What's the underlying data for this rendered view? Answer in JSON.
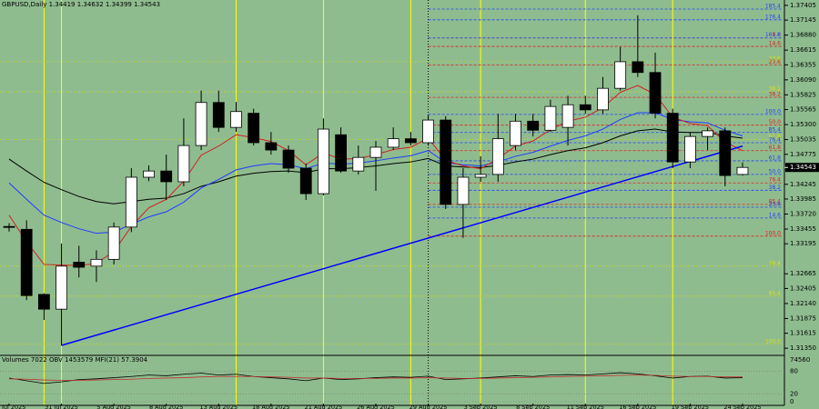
{
  "chart_data": [
    {
      "type": "candlestick",
      "title": "GBPUSD,Daily  1.34419 1.34632 1.34399 1.34543",
      "categories": [
        "28 Jul 2025",
        null,
        null,
        "31 Jul 2025",
        null,
        null,
        "5 Aug 2025",
        null,
        null,
        "8 Aug 2025",
        null,
        null,
        "13 Aug 2025",
        null,
        null,
        "18 Aug 2025",
        null,
        null,
        "21 Aug 2025",
        null,
        null,
        "26 Aug 2025",
        null,
        null,
        "29 Aug 2025",
        null,
        null,
        "3 Sep 2025",
        null,
        null,
        "8 Sep 2025",
        null,
        null,
        "11 Sep 2025",
        null,
        null,
        "16 Sep 2025",
        null,
        null,
        "19 Sep 2025",
        null,
        null,
        "24 Sep 2025"
      ],
      "open": [
        1.335,
        1.3345,
        1.323,
        1.3204,
        1.3287,
        1.328,
        1.3292,
        1.3349,
        1.3437,
        1.3448,
        1.3429,
        1.3493,
        1.3569,
        1.3525,
        1.355,
        1.3498,
        1.3485,
        1.3453,
        1.3408,
        1.3512,
        1.3448,
        1.3472,
        1.349,
        1.3505,
        1.3498,
        1.3538,
        1.3389,
        1.3437,
        1.3442,
        1.3493,
        1.3536,
        1.352,
        1.3525,
        1.3565,
        1.3556,
        1.3594,
        1.3641,
        1.3622,
        1.355,
        1.3464,
        1.3509,
        1.3519,
        1.34419
      ],
      "high": [
        1.3356,
        1.3361,
        1.3232,
        1.332,
        1.3316,
        1.3308,
        1.3357,
        1.3453,
        1.3458,
        1.3477,
        1.3541,
        1.359,
        1.359,
        1.357,
        1.3558,
        1.3517,
        1.3493,
        1.3461,
        1.3541,
        1.3525,
        1.3493,
        1.3501,
        1.3525,
        1.3517,
        1.3546,
        1.3545,
        1.3453,
        1.3474,
        1.3549,
        1.3549,
        1.3549,
        1.3574,
        1.3581,
        1.3581,
        1.3614,
        1.3667,
        1.3723,
        1.3657,
        1.3558,
        1.3517,
        1.3525,
        1.3525,
        1.34632
      ],
      "low": [
        1.3341,
        1.322,
        1.3185,
        1.314,
        1.326,
        1.3252,
        1.3283,
        1.334,
        1.343,
        1.3397,
        1.3421,
        1.3485,
        1.3517,
        1.3517,
        1.3493,
        1.3477,
        1.3445,
        1.3397,
        1.3405,
        1.3445,
        1.3442,
        1.3413,
        1.3485,
        1.3493,
        1.3493,
        1.3381,
        1.333,
        1.3429,
        1.3429,
        1.3485,
        1.3509,
        1.3517,
        1.3493,
        1.3549,
        1.3549,
        1.359,
        1.3614,
        1.3541,
        1.3453,
        1.3453,
        1.3485,
        1.3421,
        1.34399
      ],
      "close": [
        1.3349,
        1.3228,
        1.3204,
        1.328,
        1.3278,
        1.3292,
        1.3349,
        1.3437,
        1.3448,
        1.3429,
        1.3493,
        1.3569,
        1.3525,
        1.3553,
        1.3498,
        1.3485,
        1.3453,
        1.3408,
        1.3522,
        1.3448,
        1.3472,
        1.349,
        1.3505,
        1.3498,
        1.3538,
        1.3389,
        1.3437,
        1.3442,
        1.3505,
        1.3536,
        1.352,
        1.3562,
        1.3565,
        1.3556,
        1.3594,
        1.3641,
        1.3622,
        1.355,
        1.3464,
        1.3509,
        1.3519,
        1.344,
        1.34543
      ],
      "up_color": "#ffffff",
      "down_color": "#000000",
      "background": "#8fbc8f",
      "ylim": [
        1.3124,
        1.375
      ],
      "yticks": [
        1.37405,
        1.37145,
        {
          "value": 1.3688,
          "label": "1.36880"
        },
        1.36615,
        1.36355,
        {
          "value": 1.3609,
          "label": "1.36090"
        },
        1.35825,
        1.35565,
        {
          "value": 1.353,
          "label": "1.35300"
        },
        1.35035,
        1.34775,
        1.34245,
        1.33985,
        {
          "value": 1.3372,
          "label": "1.33720"
        },
        1.33455,
        1.33195,
        1.32665,
        1.32405,
        {
          "value": 1.3214,
          "label": "1.32140"
        },
        1.31875,
        1.31615,
        {
          "value": 1.3135,
          "label": "1.31350"
        }
      ],
      "current_price": 1.34543,
      "overlays": [
        {
          "color": "#000000",
          "values": [
            1.3469,
            1.3448,
            1.3428,
            1.3415,
            1.3403,
            1.3394,
            1.339,
            1.3394,
            1.3398,
            1.34,
            1.3408,
            1.3421,
            1.3429,
            1.3439,
            1.3444,
            1.3447,
            1.3448,
            1.3445,
            1.3452,
            1.3452,
            1.3454,
            1.3457,
            1.3461,
            1.3464,
            1.347,
            1.3457,
            1.3455,
            1.3454,
            1.3458,
            1.3464,
            1.3469,
            1.3477,
            1.3484,
            1.3489,
            1.3498,
            1.351,
            1.3519,
            1.3522,
            1.3517,
            1.3516,
            1.3516,
            1.351,
            1.3506
          ]
        },
        {
          "color": "#1e3cff",
          "values": [
            1.3427,
            1.3398,
            1.337,
            1.3357,
            1.3346,
            1.3338,
            1.334,
            1.3354,
            1.3367,
            1.3376,
            1.3393,
            1.3418,
            1.3433,
            1.345,
            1.3457,
            1.3461,
            1.3459,
            1.3452,
            1.3462,
            1.346,
            1.3462,
            1.3466,
            1.3471,
            1.3475,
            1.3484,
            1.3463,
            1.3459,
            1.3457,
            1.3464,
            1.3474,
            1.3481,
            1.3492,
            1.3502,
            1.351,
            1.3522,
            1.3539,
            1.3551,
            1.3551,
            1.3539,
            1.3535,
            1.3533,
            1.352,
            1.351
          ]
        },
        {
          "color": "#d02020",
          "values": [
            1.337,
            1.3323,
            1.3283,
            1.3282,
            1.3281,
            1.3285,
            1.3306,
            1.335,
            1.3383,
            1.3398,
            1.343,
            1.3476,
            1.3492,
            1.3512,
            1.3507,
            1.35,
            1.3484,
            1.3459,
            1.348,
            1.3469,
            1.347,
            1.3477,
            1.3486,
            1.349,
            1.3506,
            1.3467,
            1.3457,
            1.3452,
            1.347,
            1.3492,
            1.3501,
            1.3521,
            1.3536,
            1.3543,
            1.356,
            1.3587,
            1.3599,
            1.3583,
            1.3543,
            1.3532,
            1.3528,
            1.3499,
            1.3484
          ]
        }
      ],
      "trendline": {
        "x": [
          3,
          42
        ],
        "y": [
          1.314,
          1.3492
        ],
        "color": "#0000ff"
      },
      "vertical_lines": [
        2,
        3,
        13,
        18,
        23,
        27,
        33,
        38
      ],
      "vertical_line_color": "#ffff00",
      "period_separator": 24,
      "fib_levels": [
        {
          "label": "185.4",
          "value": 1.3734,
          "color": "#2040ff"
        },
        {
          "label": "176.4",
          "value": 1.3715,
          "color": "#2040ff"
        },
        {
          "label": "0.0",
          "value": 1.3683,
          "color": "#e02020"
        },
        {
          "label": "161.8",
          "value": 1.3683,
          "color": "#2040ff"
        },
        {
          "label": "14.6",
          "value": 1.3668,
          "color": "#e02020"
        },
        {
          "label": "23.6",
          "value": 1.3641,
          "color": "#e0e000"
        },
        {
          "label": "23.6",
          "value": 1.3635,
          "color": "#e02020"
        },
        {
          "label": "38.2",
          "value": 1.3588,
          "color": "#e0e000"
        },
        {
          "label": "38.2",
          "value": 1.3578,
          "color": "#e02020"
        },
        {
          "label": "100.0",
          "value": 1.3548,
          "color": "#2040ff"
        },
        {
          "label": "50.0",
          "value": 1.3529,
          "color": "#e02020"
        },
        {
          "label": "85.4",
          "value": 1.3516,
          "color": "#2040ff"
        },
        {
          "label": "61.8",
          "value": 1.3504,
          "color": "#e0e000"
        },
        {
          "label": "76.4",
          "value": 1.3498,
          "color": "#2040ff"
        },
        {
          "label": "61.8",
          "value": 1.3484,
          "color": "#e02020"
        },
        {
          "label": "61.8",
          "value": 1.3466,
          "color": "#2040ff"
        },
        {
          "label": "50.0",
          "value": 1.3442,
          "color": "#2040ff"
        },
        {
          "label": "76.4",
          "value": 1.3427,
          "color": "#e02020"
        },
        {
          "label": "38.2",
          "value": 1.3414,
          "color": "#2040ff"
        },
        {
          "label": "85.4",
          "value": 1.3389,
          "color": "#e02020"
        },
        {
          "label": "23.6",
          "value": 1.3384,
          "color": "#2040ff"
        },
        {
          "label": "14.6",
          "value": 1.3365,
          "color": "#2040ff"
        },
        {
          "label": "100.0",
          "value": 1.3333,
          "color": "#e02020"
        },
        {
          "label": "76.4",
          "value": 1.328,
          "color": "#e0e000"
        },
        {
          "label": "85.4",
          "value": 1.3227,
          "color": "#e0e000"
        },
        {
          "label": "100.0",
          "value": 1.3142,
          "color": "#e0e000"
        }
      ]
    },
    {
      "type": "line",
      "title": "Volumes 7022  OBV 1453579  MFI(21) 57.3904",
      "ylim": [
        0,
        100
      ],
      "yticks": [
        80,
        20,
        0
      ],
      "volume_scale_max": 74560,
      "series": [
        {
          "color": "#000000",
          "values": [
            62,
            55,
            48,
            52,
            58,
            60,
            63,
            66,
            70,
            68,
            72,
            75,
            70,
            72,
            66,
            63,
            60,
            55,
            62,
            58,
            60,
            63,
            65,
            64,
            67,
            58,
            60,
            62,
            65,
            68,
            66,
            70,
            71,
            70,
            73,
            76,
            73,
            68,
            62,
            66,
            67,
            62,
            63
          ]
        },
        {
          "color": "#c03030",
          "values": [
            60,
            59,
            57,
            56,
            56,
            57,
            58,
            59,
            61,
            62,
            63,
            65,
            66,
            66,
            66,
            65,
            64,
            62,
            62,
            61,
            61,
            61,
            62,
            62,
            63,
            62,
            61,
            61,
            62,
            63,
            64,
            65,
            66,
            67,
            68,
            69,
            70,
            69,
            67,
            66,
            66,
            65,
            65
          ]
        }
      ]
    }
  ]
}
